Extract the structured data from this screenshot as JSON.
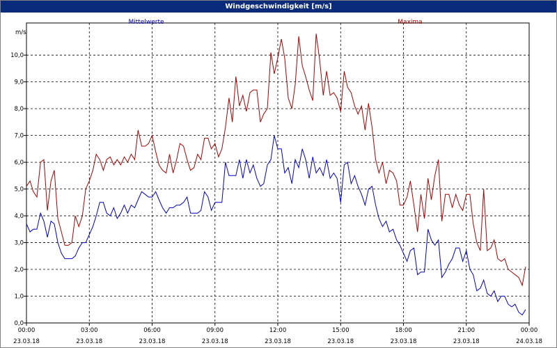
{
  "chart_data": {
    "type": "line",
    "title": "Windgeschwindigkeit [m/s]",
    "unit_label": "m/s",
    "ylim": [
      0,
      11.2
    ],
    "yticks": [
      "0,0",
      "1,0",
      "2,0",
      "3,0",
      "4,0",
      "5,0",
      "6,0",
      "7,0",
      "8,0",
      "9,0",
      "10,0"
    ],
    "xlim": [
      0,
      24
    ],
    "xticks": [
      {
        "time": "00:00",
        "date": "23.03.18"
      },
      {
        "time": "03:00",
        "date": "23.03.18"
      },
      {
        "time": "06:00",
        "date": "23.03.18"
      },
      {
        "time": "09:00",
        "date": "23.03.18"
      },
      {
        "time": "12:00",
        "date": "23.03.18"
      },
      {
        "time": "15:00",
        "date": "23.03.18"
      },
      {
        "time": "18:00",
        "date": "23.03.18"
      },
      {
        "time": "21:00",
        "date": "23.03.18"
      },
      {
        "time": "00:00",
        "date": "24.03.18"
      }
    ],
    "grid": true,
    "series": [
      {
        "name": "Mittelwerte",
        "color": "#0000cc",
        "points": [
          [
            0,
            3.7
          ],
          [
            0.17,
            3.4
          ],
          [
            0.33,
            3.5
          ],
          [
            0.5,
            3.5
          ],
          [
            0.67,
            4.1
          ],
          [
            0.83,
            3.8
          ],
          [
            1,
            3.2
          ],
          [
            1.17,
            3.8
          ],
          [
            1.33,
            3.7
          ],
          [
            1.5,
            3.0
          ],
          [
            1.67,
            2.6
          ],
          [
            1.83,
            2.4
          ],
          [
            2,
            2.4
          ],
          [
            2.17,
            2.4
          ],
          [
            2.33,
            2.5
          ],
          [
            2.5,
            2.8
          ],
          [
            2.67,
            3.0
          ],
          [
            2.83,
            3.0
          ],
          [
            3,
            3.3
          ],
          [
            3.17,
            3.6
          ],
          [
            3.33,
            4.0
          ],
          [
            3.5,
            4.5
          ],
          [
            3.67,
            4.5
          ],
          [
            3.83,
            4.1
          ],
          [
            4,
            4.0
          ],
          [
            4.17,
            4.3
          ],
          [
            4.33,
            3.9
          ],
          [
            4.5,
            4.1
          ],
          [
            4.67,
            4.4
          ],
          [
            4.83,
            4.1
          ],
          [
            5,
            4.4
          ],
          [
            5.17,
            4.3
          ],
          [
            5.33,
            4.6
          ],
          [
            5.5,
            4.9
          ],
          [
            5.67,
            4.8
          ],
          [
            5.83,
            4.7
          ],
          [
            6,
            4.7
          ],
          [
            6.17,
            4.9
          ],
          [
            6.33,
            4.6
          ],
          [
            6.5,
            4.3
          ],
          [
            6.67,
            4.1
          ],
          [
            6.83,
            4.3
          ],
          [
            7,
            4.3
          ],
          [
            7.17,
            4.4
          ],
          [
            7.33,
            4.4
          ],
          [
            7.5,
            4.5
          ],
          [
            7.67,
            4.7
          ],
          [
            7.83,
            4.1
          ],
          [
            8,
            4.1
          ],
          [
            8.17,
            4.1
          ],
          [
            8.33,
            4.2
          ],
          [
            8.5,
            4.9
          ],
          [
            8.67,
            4.7
          ],
          [
            8.83,
            4.2
          ],
          [
            9,
            4.5
          ],
          [
            9.17,
            4.5
          ],
          [
            9.33,
            4.5
          ],
          [
            9.5,
            6.0
          ],
          [
            9.67,
            5.5
          ],
          [
            9.83,
            5.5
          ],
          [
            10,
            5.5
          ],
          [
            10.17,
            6.1
          ],
          [
            10.33,
            5.4
          ],
          [
            10.5,
            6.1
          ],
          [
            10.67,
            5.6
          ],
          [
            10.83,
            5.9
          ],
          [
            11,
            5.4
          ],
          [
            11.17,
            5.1
          ],
          [
            11.33,
            5.2
          ],
          [
            11.5,
            5.9
          ],
          [
            11.67,
            6.1
          ],
          [
            11.83,
            7.0
          ],
          [
            12,
            6.5
          ],
          [
            12.17,
            6.5
          ],
          [
            12.33,
            5.6
          ],
          [
            12.5,
            5.8
          ],
          [
            12.67,
            5.2
          ],
          [
            12.83,
            6.1
          ],
          [
            13,
            5.8
          ],
          [
            13.17,
            6.5
          ],
          [
            13.33,
            6.1
          ],
          [
            13.5,
            5.4
          ],
          [
            13.67,
            6.2
          ],
          [
            13.83,
            5.6
          ],
          [
            14,
            5.8
          ],
          [
            14.17,
            5.5
          ],
          [
            14.33,
            6.1
          ],
          [
            14.5,
            5.4
          ],
          [
            14.67,
            5.6
          ],
          [
            14.83,
            5.4
          ],
          [
            15,
            4.5
          ],
          [
            15.17,
            5.9
          ],
          [
            15.33,
            6.0
          ],
          [
            15.5,
            5.2
          ],
          [
            15.67,
            5.5
          ],
          [
            15.83,
            5.1
          ],
          [
            16,
            4.8
          ],
          [
            16.17,
            4.4
          ],
          [
            16.33,
            5.0
          ],
          [
            16.5,
            5.1
          ],
          [
            16.67,
            4.4
          ],
          [
            16.83,
            3.9
          ],
          [
            17,
            3.6
          ],
          [
            17.17,
            3.8
          ],
          [
            17.33,
            3.4
          ],
          [
            17.5,
            3.5
          ],
          [
            17.67,
            3.1
          ],
          [
            17.83,
            2.9
          ],
          [
            18,
            2.6
          ],
          [
            18.17,
            2.3
          ],
          [
            18.33,
            2.7
          ],
          [
            18.5,
            2.8
          ],
          [
            18.67,
            1.8
          ],
          [
            18.83,
            1.9
          ],
          [
            19,
            1.9
          ],
          [
            19.17,
            3.5
          ],
          [
            19.33,
            3.1
          ],
          [
            19.5,
            2.9
          ],
          [
            19.67,
            3.1
          ],
          [
            19.83,
            1.7
          ],
          [
            20,
            1.9
          ],
          [
            20.17,
            2.2
          ],
          [
            20.33,
            2.4
          ],
          [
            20.5,
            2.8
          ],
          [
            20.67,
            2.8
          ],
          [
            20.83,
            2.3
          ],
          [
            21,
            2.7
          ],
          [
            21.17,
            2.0
          ],
          [
            21.33,
            1.8
          ],
          [
            21.5,
            1.2
          ],
          [
            21.67,
            1.3
          ],
          [
            21.83,
            1.6
          ],
          [
            22,
            1.1
          ],
          [
            22.17,
            1.0
          ],
          [
            22.33,
            1.2
          ],
          [
            22.5,
            0.8
          ],
          [
            22.67,
            1.0
          ],
          [
            22.83,
            1.0
          ],
          [
            23,
            0.7
          ],
          [
            23.17,
            0.6
          ],
          [
            23.33,
            0.7
          ],
          [
            23.5,
            0.4
          ],
          [
            23.67,
            0.3
          ],
          [
            23.83,
            0.5
          ]
        ]
      },
      {
        "name": "Maxima",
        "color": "#aa0000",
        "points": [
          [
            0,
            5.1
          ],
          [
            0.17,
            5.3
          ],
          [
            0.33,
            4.9
          ],
          [
            0.5,
            4.7
          ],
          [
            0.67,
            6.0
          ],
          [
            0.83,
            6.1
          ],
          [
            1,
            4.2
          ],
          [
            1.17,
            5.3
          ],
          [
            1.33,
            5.7
          ],
          [
            1.5,
            3.9
          ],
          [
            1.67,
            3.4
          ],
          [
            1.83,
            2.9
          ],
          [
            2,
            2.9
          ],
          [
            2.17,
            3.0
          ],
          [
            2.33,
            4.0
          ],
          [
            2.5,
            3.6
          ],
          [
            2.67,
            4.0
          ],
          [
            2.83,
            5.0
          ],
          [
            3,
            5.3
          ],
          [
            3.17,
            5.7
          ],
          [
            3.33,
            6.3
          ],
          [
            3.5,
            6.1
          ],
          [
            3.67,
            5.7
          ],
          [
            3.83,
            6.1
          ],
          [
            4,
            6.2
          ],
          [
            4.17,
            5.9
          ],
          [
            4.33,
            6.1
          ],
          [
            4.5,
            5.9
          ],
          [
            4.67,
            6.2
          ],
          [
            4.83,
            6.0
          ],
          [
            5,
            6.3
          ],
          [
            5.17,
            6.1
          ],
          [
            5.33,
            7.2
          ],
          [
            5.5,
            6.6
          ],
          [
            5.67,
            6.6
          ],
          [
            5.83,
            6.7
          ],
          [
            6,
            7.0
          ],
          [
            6.17,
            6.4
          ],
          [
            6.33,
            5.9
          ],
          [
            6.5,
            5.7
          ],
          [
            6.67,
            5.6
          ],
          [
            6.83,
            6.3
          ],
          [
            7,
            5.6
          ],
          [
            7.17,
            6.1
          ],
          [
            7.33,
            6.7
          ],
          [
            7.5,
            6.6
          ],
          [
            7.67,
            6.1
          ],
          [
            7.83,
            5.7
          ],
          [
            8,
            5.8
          ],
          [
            8.17,
            6.3
          ],
          [
            8.33,
            6.1
          ],
          [
            8.5,
            6.9
          ],
          [
            8.67,
            6.9
          ],
          [
            8.83,
            6.5
          ],
          [
            9,
            6.7
          ],
          [
            9.17,
            6.2
          ],
          [
            9.33,
            6.5
          ],
          [
            9.5,
            7.3
          ],
          [
            9.67,
            8.4
          ],
          [
            9.83,
            7.5
          ],
          [
            10,
            9.2
          ],
          [
            10.17,
            8.1
          ],
          [
            10.33,
            8.5
          ],
          [
            10.5,
            7.9
          ],
          [
            10.67,
            8.6
          ],
          [
            10.83,
            8.7
          ],
          [
            11,
            8.7
          ],
          [
            11.17,
            7.5
          ],
          [
            11.33,
            7.8
          ],
          [
            11.5,
            8.0
          ],
          [
            11.67,
            10.1
          ],
          [
            11.83,
            9.3
          ],
          [
            12,
            9.9
          ],
          [
            12.17,
            10.6
          ],
          [
            12.33,
            9.9
          ],
          [
            12.5,
            8.4
          ],
          [
            12.67,
            8.0
          ],
          [
            12.83,
            8.9
          ],
          [
            13,
            10.7
          ],
          [
            13.17,
            9.6
          ],
          [
            13.33,
            9.2
          ],
          [
            13.5,
            8.7
          ],
          [
            13.67,
            8.3
          ],
          [
            13.83,
            10.8
          ],
          [
            14,
            9.8
          ],
          [
            14.17,
            8.5
          ],
          [
            14.33,
            9.4
          ],
          [
            14.5,
            8.5
          ],
          [
            14.67,
            8.6
          ],
          [
            14.83,
            8.4
          ],
          [
            15,
            7.9
          ],
          [
            15.17,
            9.4
          ],
          [
            15.33,
            8.8
          ],
          [
            15.5,
            8.6
          ],
          [
            15.67,
            8.1
          ],
          [
            15.83,
            7.8
          ],
          [
            16,
            8.1
          ],
          [
            16.17,
            7.2
          ],
          [
            16.33,
            8.2
          ],
          [
            16.5,
            7.3
          ],
          [
            16.67,
            6.1
          ],
          [
            16.83,
            5.6
          ],
          [
            17,
            6.0
          ],
          [
            17.17,
            5.2
          ],
          [
            17.33,
            5.7
          ],
          [
            17.5,
            5.6
          ],
          [
            17.67,
            5.3
          ],
          [
            17.83,
            4.4
          ],
          [
            18,
            4.4
          ],
          [
            18.17,
            4.7
          ],
          [
            18.33,
            5.3
          ],
          [
            18.5,
            4.4
          ],
          [
            18.67,
            3.4
          ],
          [
            18.83,
            4.8
          ],
          [
            19,
            3.9
          ],
          [
            19.17,
            5.4
          ],
          [
            19.33,
            4.6
          ],
          [
            19.5,
            5.5
          ],
          [
            19.67,
            6.1
          ],
          [
            19.83,
            3.8
          ],
          [
            20,
            4.8
          ],
          [
            20.17,
            4.8
          ],
          [
            20.33,
            4.3
          ],
          [
            20.5,
            4.8
          ],
          [
            20.67,
            4.4
          ],
          [
            20.83,
            4.2
          ],
          [
            21,
            4.8
          ],
          [
            21.17,
            4.8
          ],
          [
            21.33,
            3.7
          ],
          [
            21.5,
            3.0
          ],
          [
            21.67,
            2.7
          ],
          [
            21.83,
            5.0
          ],
          [
            22,
            2.7
          ],
          [
            22.17,
            2.8
          ],
          [
            22.33,
            3.1
          ],
          [
            22.5,
            2.4
          ],
          [
            22.67,
            2.3
          ],
          [
            22.83,
            2.4
          ],
          [
            23,
            2.0
          ],
          [
            23.17,
            1.9
          ],
          [
            23.33,
            1.8
          ],
          [
            23.5,
            1.7
          ],
          [
            23.67,
            1.4
          ],
          [
            23.83,
            2.1
          ]
        ]
      }
    ]
  }
}
